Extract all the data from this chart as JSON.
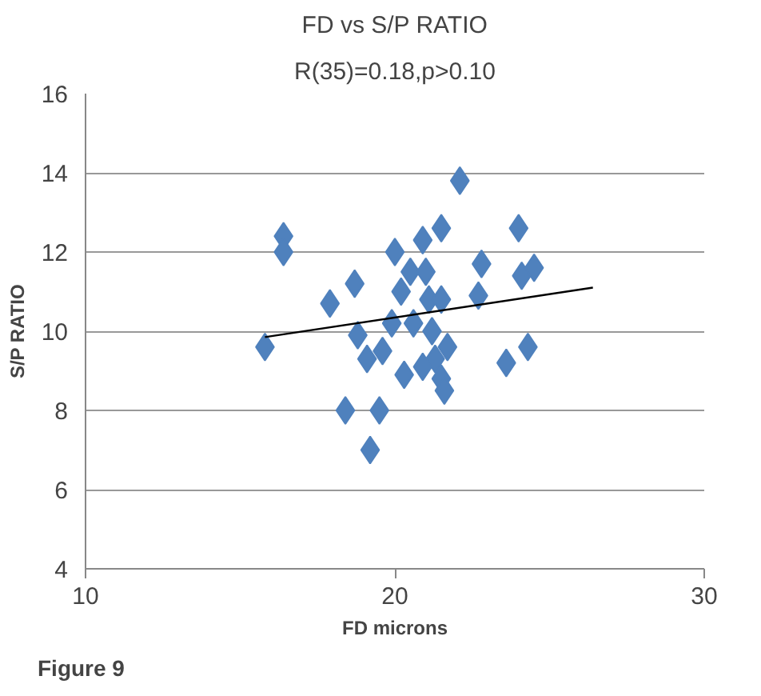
{
  "chart_data": {
    "type": "scatter",
    "title": "FD vs S/P RATIO",
    "subtitle": "R(35)=0.18,p>0.10",
    "xlabel": "FD microns",
    "ylabel": "S/P RATIO",
    "annotations": [
      "Figure 9"
    ],
    "xlim": [
      10,
      30
    ],
    "xticks": [
      10,
      20,
      30
    ],
    "ylim": [
      4,
      16
    ],
    "yticks": [
      4,
      6,
      8,
      10,
      12,
      14,
      16
    ],
    "grid": "y",
    "series": [
      {
        "marker": "diamond",
        "color": "#4f81bd",
        "x": [
          15.8,
          16.4,
          16.4,
          17.9,
          18.7,
          18.4,
          19.2,
          19.5,
          18.8,
          19.1,
          19.6,
          20.3,
          20.0,
          20.5,
          20.9,
          21.5,
          22.1,
          21.1,
          21.5,
          21.2,
          21.3,
          21.5,
          21.6,
          20.9,
          20.6,
          22.8,
          22.7,
          24.0,
          24.1,
          24.5,
          23.6,
          24.3,
          20.2,
          21.0,
          19.9,
          21.7
        ],
        "values": [
          9.6,
          12.4,
          12.0,
          10.7,
          11.2,
          8.0,
          7.0,
          8.0,
          9.9,
          9.3,
          9.5,
          8.9,
          12.0,
          11.5,
          12.3,
          12.6,
          13.8,
          10.8,
          10.8,
          10.0,
          9.3,
          8.8,
          8.5,
          9.1,
          10.2,
          11.7,
          10.9,
          12.6,
          11.4,
          11.6,
          9.2,
          9.6,
          11.0,
          11.5,
          10.2,
          9.6
        ]
      },
      {
        "type": "line",
        "marker": "none",
        "color": "#000000",
        "x": [
          15.8,
          26.4
        ],
        "values": [
          9.85,
          11.1
        ]
      }
    ]
  }
}
